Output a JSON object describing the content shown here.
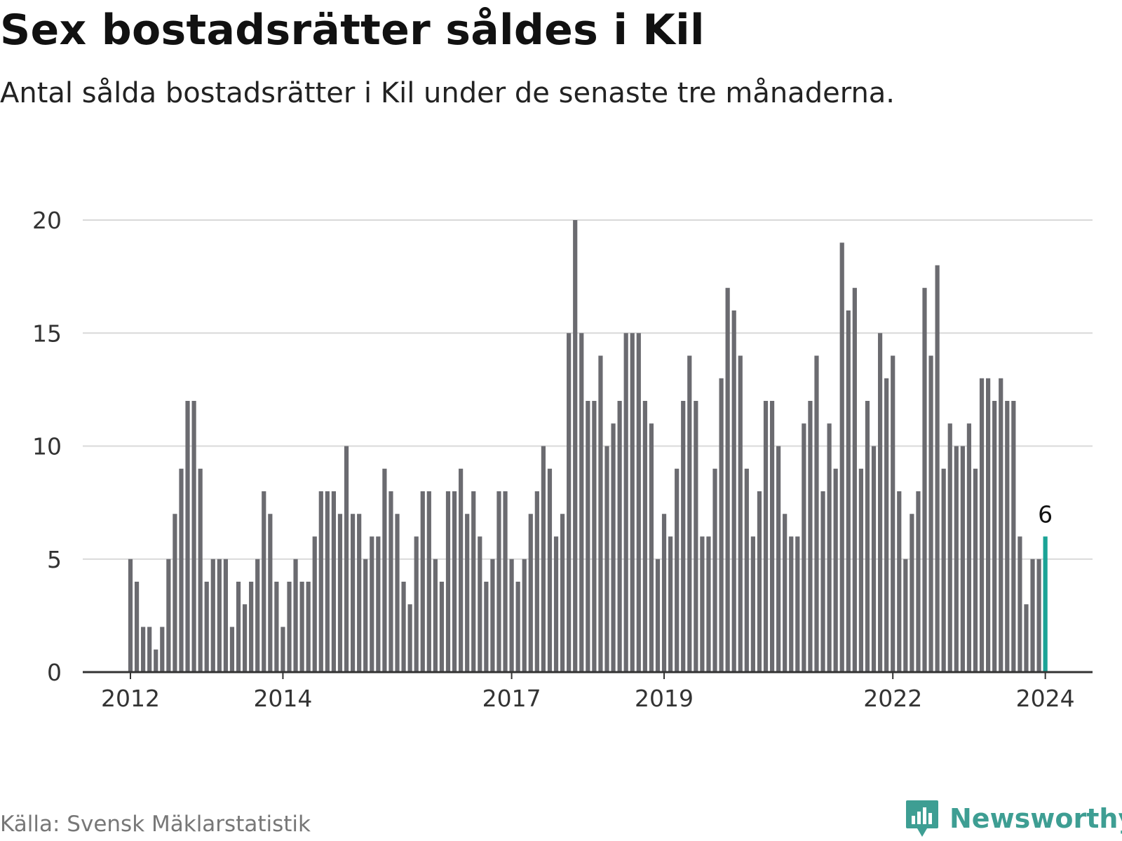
{
  "title": "Sex bostadsrätter såldes i Kil",
  "subtitle": "Antal sålda bostadsrätter i Kil under de senaste tre månaderna.",
  "source": "Källa: Svensk Mäklarstatistik",
  "brand": "Newsworthy",
  "colors": {
    "bar": "#6b6b70",
    "highlight": "#1aa396",
    "grid": "#d9d9d9",
    "axis": "#333333",
    "brand": "#3e9e93"
  },
  "chart_data": {
    "type": "bar",
    "title": "Sex bostadsrätter såldes i Kil",
    "xlabel": "",
    "ylabel": "",
    "ylim": [
      0,
      20
    ],
    "yticks": [
      0,
      5,
      10,
      15,
      20
    ],
    "grid": true,
    "xtick_labels": [
      {
        "label": "2012",
        "index": 0
      },
      {
        "label": "2014",
        "index": 24
      },
      {
        "label": "2017",
        "index": 60
      },
      {
        "label": "2019",
        "index": 84
      },
      {
        "label": "2022",
        "index": 120
      },
      {
        "label": "2024",
        "index": 144
      }
    ],
    "values": [
      5,
      4,
      2,
      2,
      1,
      2,
      5,
      7,
      9,
      12,
      12,
      9,
      4,
      5,
      5,
      5,
      2,
      4,
      3,
      4,
      5,
      8,
      7,
      4,
      2,
      4,
      5,
      4,
      4,
      6,
      8,
      8,
      8,
      7,
      10,
      7,
      7,
      5,
      6,
      6,
      9,
      8,
      7,
      4,
      3,
      6,
      8,
      8,
      5,
      4,
      8,
      8,
      9,
      7,
      8,
      6,
      4,
      5,
      8,
      8,
      5,
      4,
      5,
      7,
      8,
      10,
      9,
      6,
      7,
      15,
      20,
      15,
      12,
      12,
      14,
      10,
      11,
      12,
      15,
      15,
      15,
      12,
      11,
      5,
      7,
      6,
      9,
      12,
      14,
      12,
      6,
      6,
      9,
      13,
      17,
      16,
      14,
      9,
      6,
      8,
      12,
      12,
      10,
      7,
      6,
      6,
      11,
      12,
      14,
      8,
      11,
      9,
      19,
      16,
      17,
      9,
      12,
      10,
      15,
      13,
      14,
      8,
      5,
      7,
      8,
      17,
      14,
      18,
      9,
      11,
      10,
      10,
      11,
      9,
      13,
      13,
      12,
      13,
      12,
      12,
      6,
      3,
      5,
      5,
      6
    ],
    "highlight_index": 144,
    "highlight_label": "6"
  }
}
